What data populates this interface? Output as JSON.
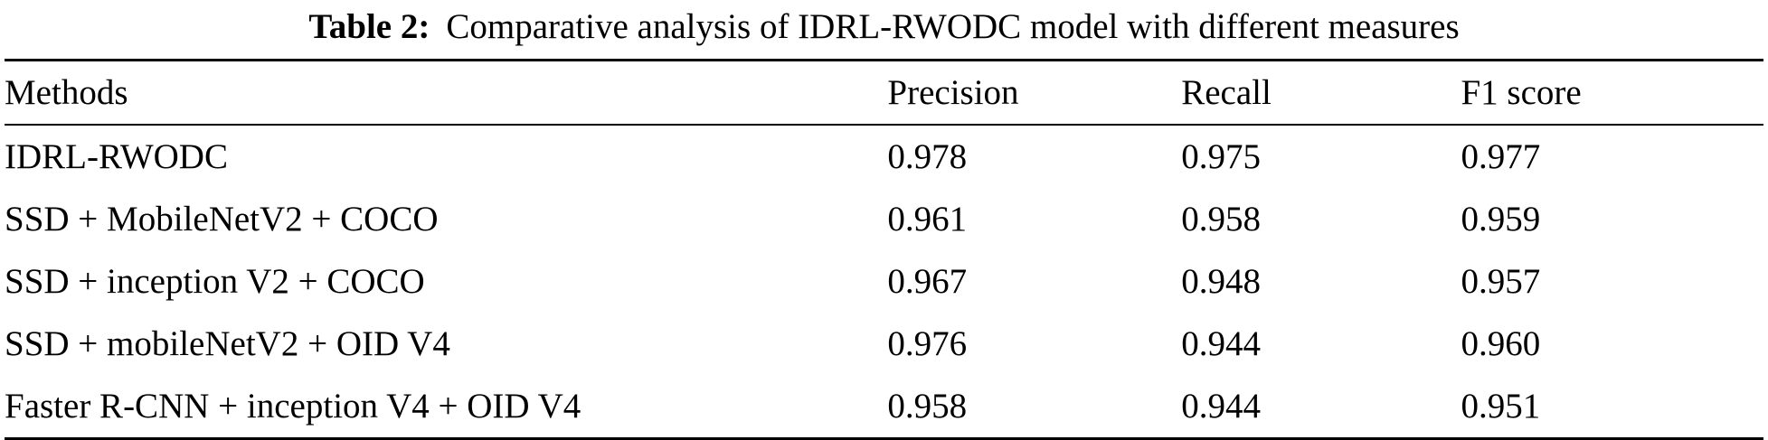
{
  "caption": {
    "label": "Table 2:",
    "text": "Comparative analysis of IDRL-RWODC model with different measures"
  },
  "table": {
    "headers": [
      "Methods",
      "Precision",
      "Recall",
      "F1 score"
    ],
    "rows": [
      [
        "IDRL-RWODC",
        "0.978",
        "0.975",
        "0.977"
      ],
      [
        "SSD + MobileNetV2 + COCO",
        "0.961",
        "0.958",
        "0.959"
      ],
      [
        "SSD + inception V2 + COCO",
        "0.967",
        "0.948",
        "0.957"
      ],
      [
        "SSD + mobileNetV2 + OID V4",
        "0.976",
        "0.944",
        "0.960"
      ],
      [
        "Faster R-CNN + inception V4 + OID V4",
        "0.958",
        "0.944",
        "0.951"
      ]
    ]
  }
}
